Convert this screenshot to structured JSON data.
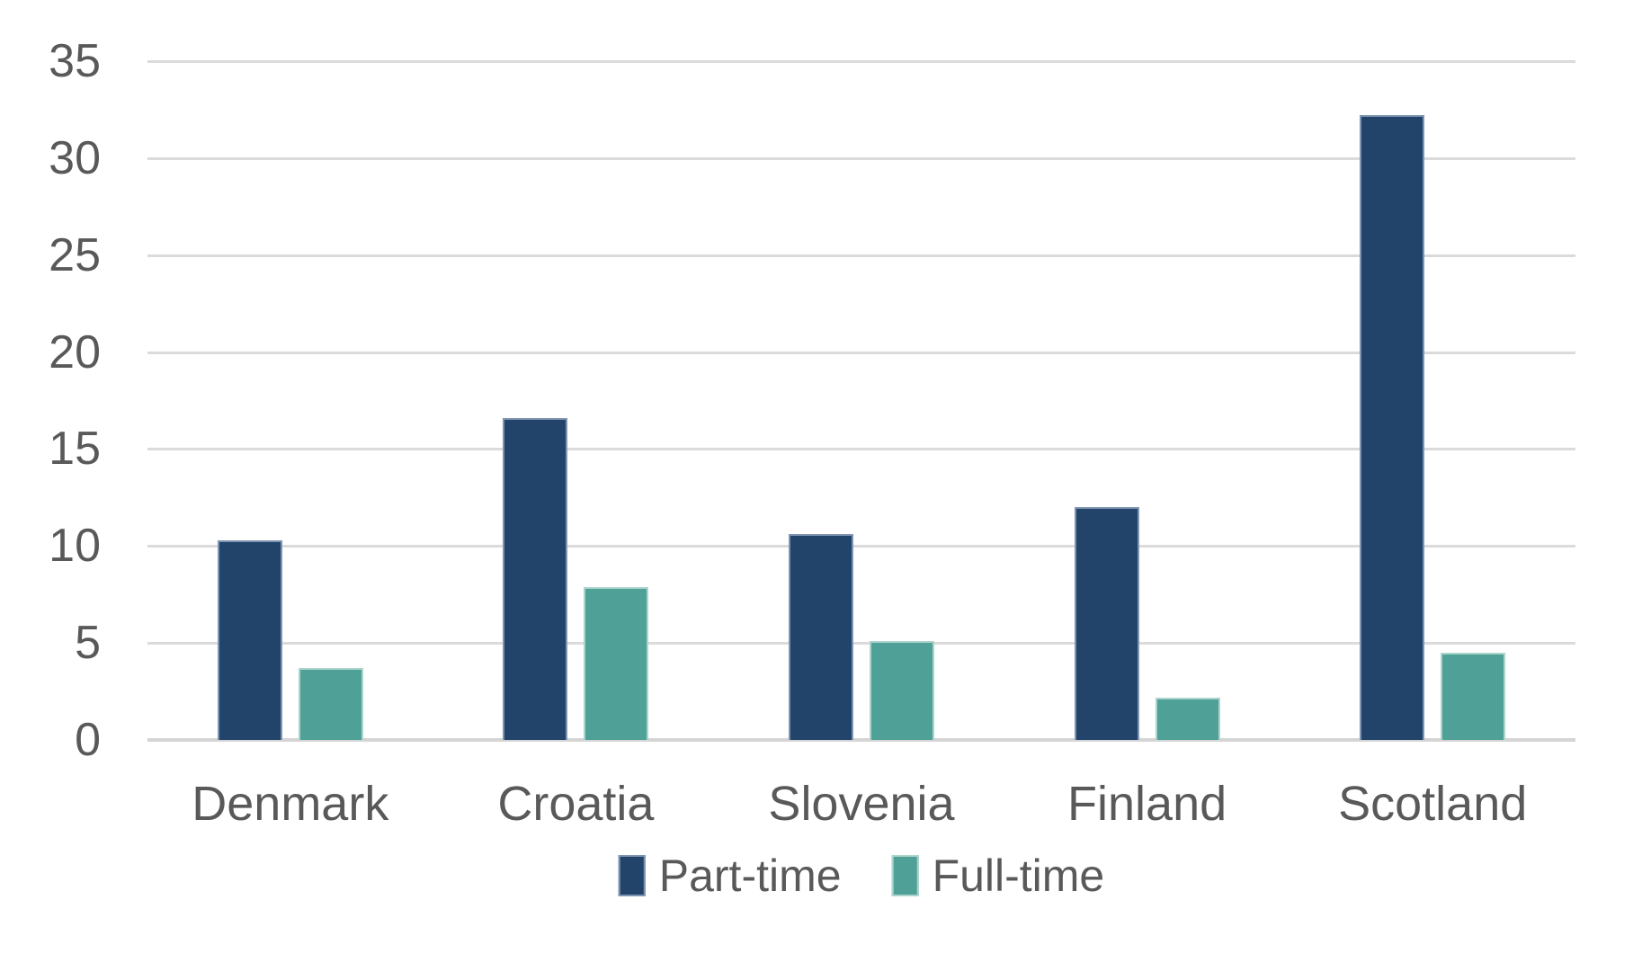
{
  "chart_data": {
    "type": "bar",
    "title": "",
    "xlabel": "",
    "ylabel": "",
    "categories": [
      "Denmark",
      "Croatia",
      "Slovenia",
      "Finland",
      "Scotland"
    ],
    "series": [
      {
        "name": "Part-time",
        "color": "#22446B",
        "border_color": "#7E94B0",
        "values": [
          10.3,
          16.6,
          10.6,
          12.0,
          32.2
        ]
      },
      {
        "name": "Full-time",
        "color": "#4FA096",
        "border_color": "#ABD4CD",
        "values": [
          3.7,
          7.9,
          5.1,
          2.2,
          4.5
        ]
      }
    ],
    "ylim": [
      0,
      35
    ],
    "yticks": [
      0,
      5,
      10,
      15,
      20,
      25,
      30,
      35
    ],
    "grid": true,
    "gridline_color": "#dbdbdb",
    "axis_line_color": "#d5d5d5",
    "text_color": "#595959",
    "legend_position": "bottom"
  }
}
